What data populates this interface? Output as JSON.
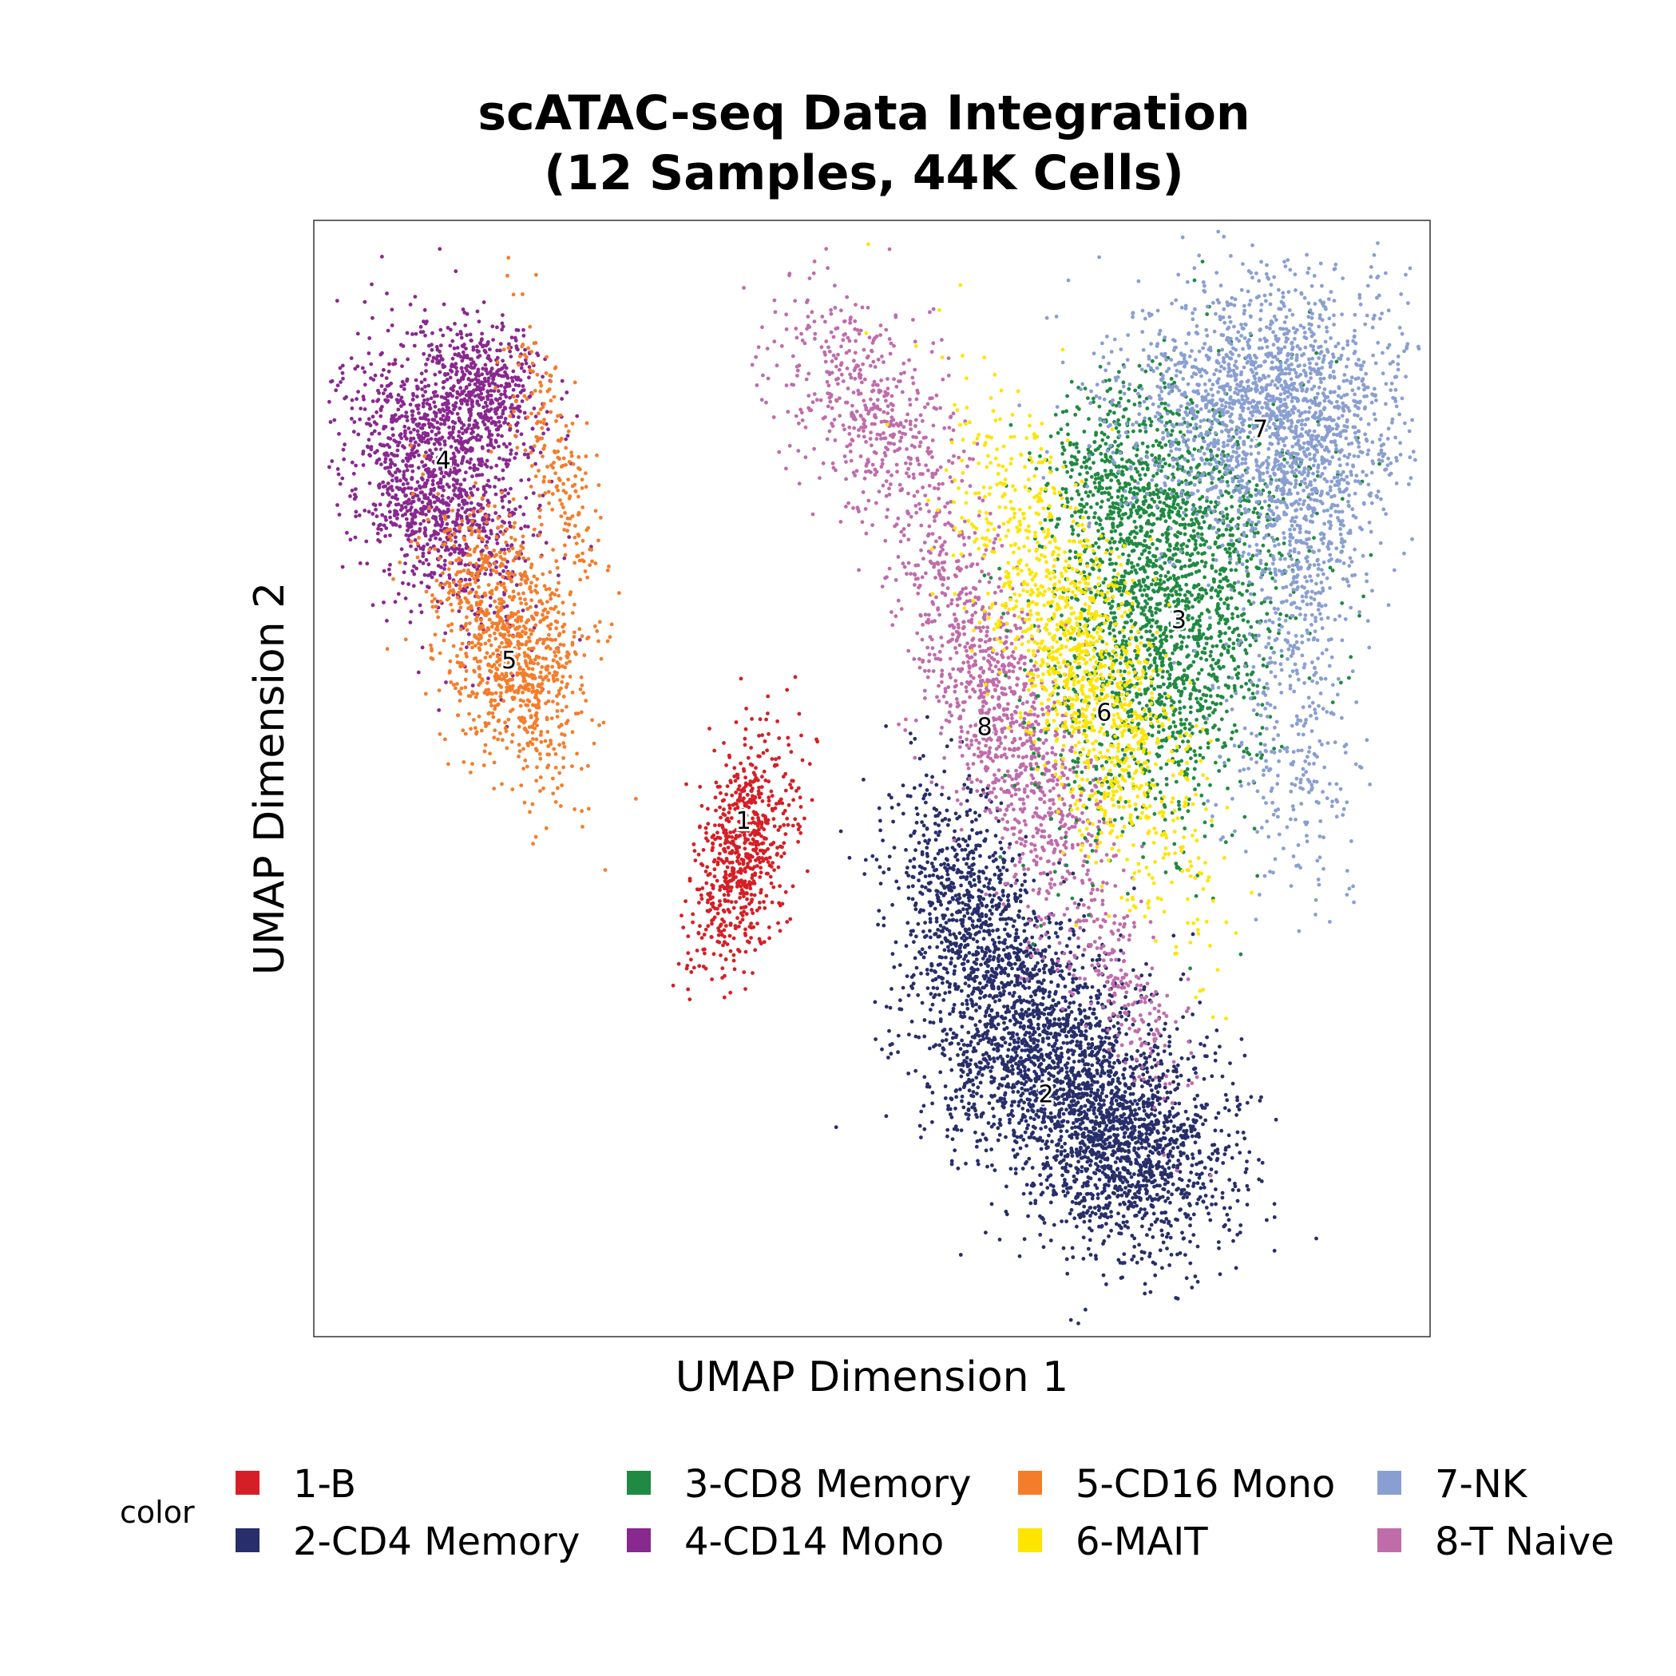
{
  "chart_data": {
    "type": "scatter",
    "title_line1": "scATAC-seq Data Integration",
    "title_line2": "(12 Samples, 44K Cells)",
    "xlabel": "UMAP Dimension 1",
    "ylabel": "UMAP Dimension 2",
    "xlim": [
      0,
      100
    ],
    "ylim": [
      0,
      100
    ],
    "grid": false,
    "legend_title": "color",
    "legend_position": "bottom",
    "clusters": [
      {
        "id": "1",
        "name": "1-B",
        "color": "#D51F26",
        "blobs": [
          {
            "cx": 38.6,
            "cy": 43.5,
            "sx": 2.1,
            "sy": 5.4,
            "rot": -12,
            "n": 700
          }
        ]
      },
      {
        "id": "2",
        "name": "2-CD4 Memory",
        "color": "#272E6A",
        "blobs": [
          {
            "cx": 65.0,
            "cy": 26.0,
            "sx": 4.8,
            "sy": 6.0,
            "rot": 30,
            "n": 1500
          },
          {
            "cx": 73.0,
            "cy": 17.0,
            "sx": 4.6,
            "sy": 5.0,
            "rot": 40,
            "n": 1400
          },
          {
            "cx": 58.5,
            "cy": 38.0,
            "sx": 3.0,
            "sy": 6.0,
            "rot": 15,
            "n": 800
          }
        ]
      },
      {
        "id": "3",
        "name": "3-CD8 Memory",
        "color": "#208A42",
        "blobs": [
          {
            "cx": 77.0,
            "cy": 64.0,
            "sx": 5.0,
            "sy": 9.5,
            "rot": -15,
            "n": 1800
          },
          {
            "cx": 73.0,
            "cy": 76.0,
            "sx": 4.0,
            "sy": 5.0,
            "rot": 0,
            "n": 600
          }
        ]
      },
      {
        "id": "4",
        "name": "4-CD14 Mono",
        "color": "#89288F",
        "blobs": [
          {
            "cx": 11.0,
            "cy": 76.0,
            "sx": 3.6,
            "sy": 6.5,
            "rot": 20,
            "n": 1300
          },
          {
            "cx": 15.5,
            "cy": 85.0,
            "sx": 2.6,
            "sy": 3.2,
            "rot": 15,
            "n": 500
          }
        ]
      },
      {
        "id": "5",
        "name": "5-CD16 Mono",
        "color": "#F47D2B",
        "blobs": [
          {
            "cx": 17.5,
            "cy": 62.0,
            "sx": 3.0,
            "sy": 6.0,
            "rot": 15,
            "n": 1000
          },
          {
            "cx": 21.5,
            "cy": 79.0,
            "sx": 1.4,
            "sy": 6.5,
            "rot": 15,
            "n": 200
          }
        ]
      },
      {
        "id": "6",
        "name": "6-MAIT",
        "color": "#FEE500",
        "blobs": [
          {
            "cx": 69.0,
            "cy": 60.0,
            "sx": 3.2,
            "sy": 11.0,
            "rot": 22,
            "n": 1300
          }
        ]
      },
      {
        "id": "7",
        "name": "7-NK",
        "color": "#8A9FD1",
        "blobs": [
          {
            "cx": 86.0,
            "cy": 83.0,
            "sx": 6.5,
            "sy": 5.8,
            "rot": 0,
            "n": 1900
          },
          {
            "cx": 88.5,
            "cy": 70.0,
            "sx": 2.5,
            "sy": 6.0,
            "rot": -5,
            "n": 400
          },
          {
            "cx": 88.0,
            "cy": 52.0,
            "sx": 3.0,
            "sy": 6.0,
            "rot": 0,
            "n": 250
          }
        ]
      },
      {
        "id": "8",
        "name": "8-T Naive",
        "color": "#C06CAB",
        "blobs": [
          {
            "cx": 62.0,
            "cy": 55.0,
            "sx": 2.8,
            "sy": 11.0,
            "rot": 22,
            "n": 1200
          },
          {
            "cx": 49.5,
            "cy": 83.5,
            "sx": 3.2,
            "sy": 6.0,
            "rot": 30,
            "n": 500
          },
          {
            "cx": 73.0,
            "cy": 30.0,
            "sx": 1.6,
            "sy": 5.0,
            "rot": 20,
            "n": 150
          }
        ]
      }
    ],
    "label_points": [
      {
        "text": "1",
        "x": 38.5,
        "y": 46.2
      },
      {
        "text": "2",
        "x": 65.6,
        "y": 21.7
      },
      {
        "text": "3",
        "x": 77.5,
        "y": 64.2
      },
      {
        "text": "4",
        "x": 11.6,
        "y": 78.5
      },
      {
        "text": "5",
        "x": 17.5,
        "y": 60.6
      },
      {
        "text": "6",
        "x": 70.8,
        "y": 55.9
      },
      {
        "text": "7",
        "x": 84.8,
        "y": 81.3
      },
      {
        "text": "8",
        "x": 60.1,
        "y": 54.6
      }
    ]
  }
}
